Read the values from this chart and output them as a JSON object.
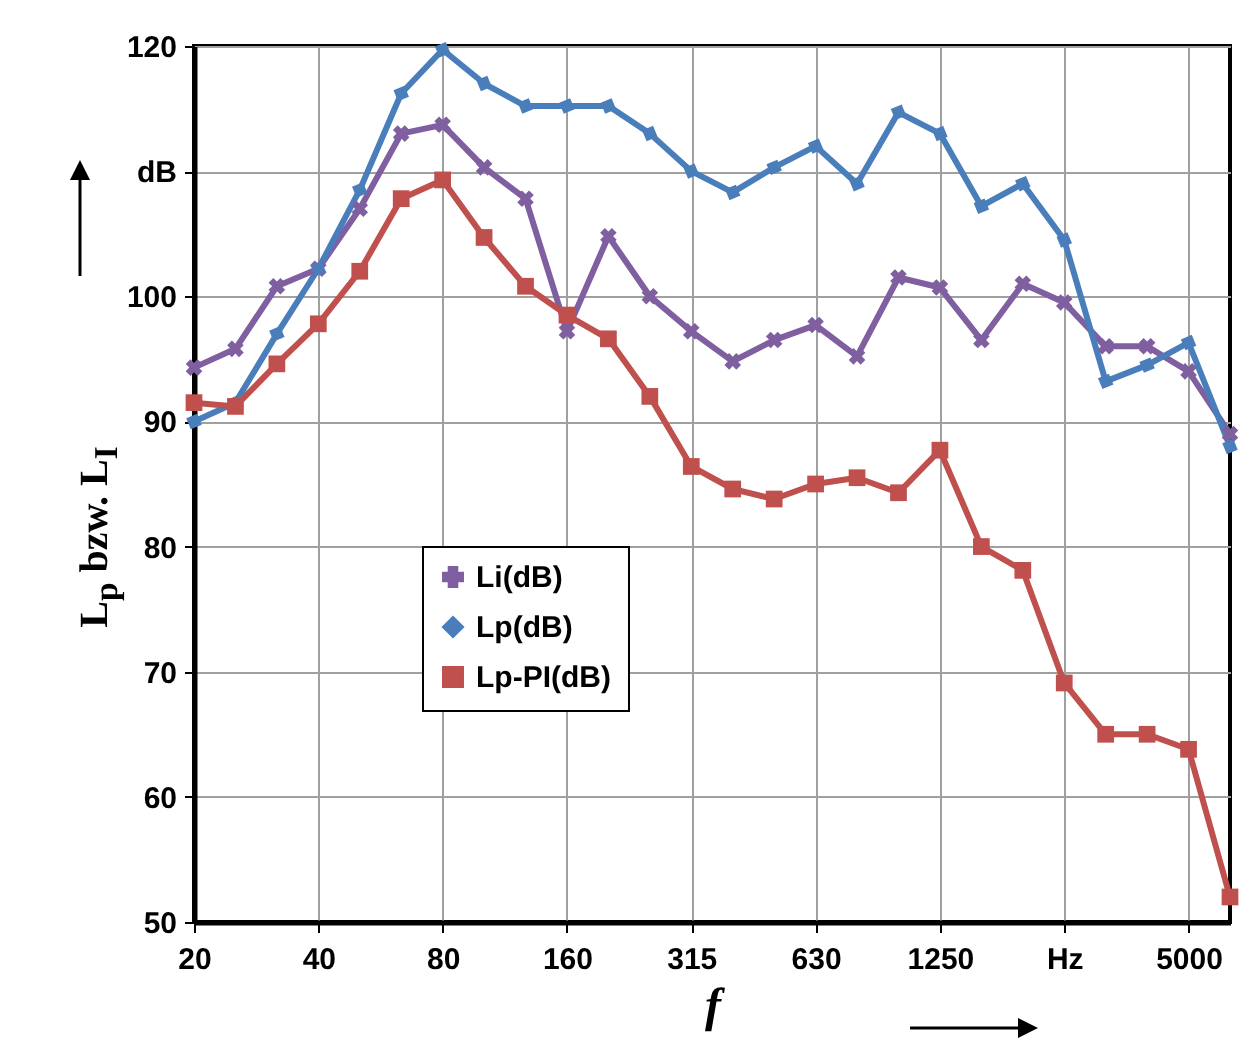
{
  "chart_data": {
    "type": "line",
    "xlabel": "f",
    "ylabel": "L$_{p}$ bzw. L$_{I}$",
    "categories": [
      "20",
      null,
      null,
      "40",
      null,
      null,
      "80",
      null,
      null,
      "160",
      null,
      null,
      "315",
      null,
      null,
      "630",
      null,
      null,
      "1250",
      null,
      null,
      "Hz",
      null,
      null,
      "5000",
      null
    ],
    "ylim": [
      50,
      120
    ],
    "yticks": [
      50,
      60,
      70,
      80,
      90,
      100,
      {
        "value": 110,
        "label": "dB"
      },
      120
    ],
    "grid": true,
    "legend": "center",
    "line_style": "solid",
    "series": [
      {
        "name": "Li(dB)",
        "color": "#7f5fa0",
        "marker": "cross",
        "values": [
          94.3,
          95.8,
          100.8,
          102.2,
          107,
          113,
          113.7,
          110.3,
          107.8,
          97.2,
          104.8,
          100,
          97.2,
          94.8,
          96.5,
          97.7,
          95.2,
          101.5,
          100.7,
          96.5,
          101,
          99.5,
          96,
          96,
          94,
          89
        ]
      },
      {
        "name": "Lp(dB)",
        "color": "#4a7ebb",
        "marker": "diamond",
        "values": [
          90,
          91.5,
          97,
          102.2,
          108.5,
          116.2,
          119.7,
          117,
          115.2,
          115.2,
          115.2,
          113,
          110,
          108.3,
          110.3,
          112,
          109,
          114.7,
          113,
          107.2,
          109,
          104.5,
          93.2,
          94.5,
          96.3,
          88
        ]
      },
      {
        "name": "Lp-PI(dB)",
        "color": "#c0504d",
        "marker": "square",
        "values": [
          91.5,
          91.2,
          94.6,
          97.8,
          102,
          107.8,
          109.3,
          104.7,
          100.8,
          98.5,
          96.6,
          92,
          86.4,
          84.6,
          83.8,
          85,
          85.5,
          84.3,
          87.7,
          80,
          78.1,
          69.1,
          65,
          65,
          63.8,
          52
        ]
      }
    ]
  }
}
